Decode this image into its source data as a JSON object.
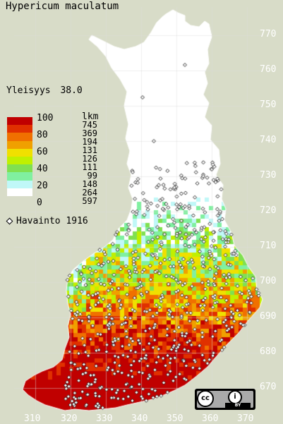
{
  "title": "Hypericum maculatum",
  "frequency": {
    "label": "Yleisyys",
    "value": "38.0"
  },
  "legend": {
    "levels": [
      "100",
      "80",
      "60",
      "40",
      "20",
      "0"
    ],
    "count_header": "lkm",
    "counts": [
      "745",
      "369",
      "194",
      "131",
      "126",
      "111",
      "99",
      "148",
      "264",
      "597"
    ],
    "colors": [
      "#c00000",
      "#e03000",
      "#f07000",
      "#f0a000",
      "#f0e000",
      "#c0f000",
      "#80e050",
      "#80f0a0",
      "#c0f8f8",
      "#ffffff"
    ]
  },
  "observations": {
    "label": "Havainto",
    "count": "1916",
    "icon": "diamond-icon"
  },
  "y_ticks": [
    "770",
    "760",
    "750",
    "740",
    "730",
    "720",
    "710",
    "700",
    "690",
    "680",
    "670"
  ],
  "x_ticks": [
    "310",
    "320",
    "330",
    "340",
    "350",
    "360",
    "370"
  ],
  "license": {
    "text": "cc",
    "by": "BY",
    "icon": "creative-commons-icon"
  }
}
